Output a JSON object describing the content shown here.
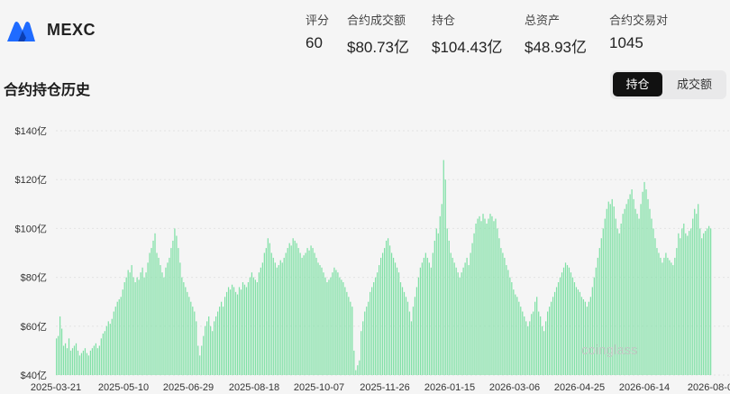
{
  "header": {
    "exchange_name": "MEXC",
    "logo_icon": "mexc-logo-icon",
    "stats": [
      {
        "label": "评分",
        "value": "60"
      },
      {
        "label": "合约成交额",
        "value": "$80.73亿"
      },
      {
        "label": "持仓",
        "value": "$104.43亿"
      },
      {
        "label": "总资产",
        "value": "$48.93亿"
      },
      {
        "label": "合约交易对",
        "value": "1045"
      }
    ]
  },
  "section": {
    "title": "合约持仓历史",
    "tabs": [
      "持仓",
      "成交额"
    ],
    "active_tab": "持仓"
  },
  "watermark": "coinglass",
  "colors": {
    "bar": "#7fe0a5",
    "brand": "#1f6bff",
    "active_tab_bg": "#111111"
  },
  "chart_data": {
    "type": "bar",
    "title": "",
    "xlabel": "",
    "ylabel": "",
    "ylim": [
      40,
      150
    ],
    "y_ticks": [
      40,
      60,
      80,
      100,
      120,
      140
    ],
    "y_tick_labels": [
      "$40亿",
      "$60亿",
      "$80亿",
      "$100亿",
      "$120亿",
      "$140亿"
    ],
    "x_tick_labels": [
      "2025-03-21",
      "2025-05-10",
      "2025-06-29",
      "2025-08-18",
      "2025-10-07",
      "2025-11-26",
      "2026-01-15",
      "2026-03-06",
      "2026-04-25",
      "2026-06-14",
      "2026-08-0"
    ],
    "grid": true,
    "unit": "亿 USD",
    "start_date": "2025-03-21",
    "interval_days": 1,
    "values": [
      55,
      56,
      64,
      59,
      52,
      53,
      51,
      55,
      50,
      51,
      52,
      53,
      50,
      48,
      49,
      50,
      51,
      49,
      48,
      50,
      51,
      52,
      53,
      51,
      52,
      55,
      57,
      58,
      60,
      62,
      61,
      63,
      66,
      68,
      70,
      71,
      72,
      75,
      78,
      80,
      83,
      82,
      85,
      80,
      78,
      80,
      79,
      82,
      84,
      80,
      82,
      86,
      90,
      92,
      95,
      98,
      90,
      88,
      85,
      82,
      80,
      84,
      86,
      88,
      92,
      95,
      100,
      97,
      92,
      86,
      80,
      78,
      76,
      74,
      72,
      70,
      68,
      66,
      62,
      52,
      48,
      52,
      56,
      60,
      62,
      64,
      60,
      58,
      62,
      64,
      66,
      68,
      70,
      68,
      72,
      74,
      76,
      75,
      77,
      76,
      74,
      73,
      76,
      75,
      78,
      77,
      76,
      78,
      80,
      82,
      80,
      79,
      78,
      82,
      84,
      86,
      90,
      92,
      96,
      94,
      90,
      88,
      86,
      84,
      85,
      87,
      86,
      88,
      90,
      92,
      94,
      93,
      96,
      95,
      94,
      92,
      90,
      88,
      89,
      90,
      92,
      91,
      93,
      92,
      90,
      88,
      86,
      85,
      84,
      82,
      80,
      78,
      79,
      80,
      82,
      84,
      83,
      82,
      80,
      79,
      78,
      76,
      74,
      72,
      70,
      68,
      50,
      42,
      44,
      46,
      58,
      62,
      66,
      68,
      70,
      74,
      76,
      78,
      80,
      82,
      85,
      88,
      90,
      92,
      95,
      96,
      93,
      90,
      88,
      86,
      84,
      82,
      78,
      76,
      74,
      72,
      70,
      66,
      62,
      68,
      72,
      76,
      80,
      84,
      86,
      88,
      90,
      88,
      86,
      84,
      90,
      95,
      100,
      98,
      105,
      110,
      128,
      120,
      100,
      95,
      90,
      88,
      86,
      84,
      82,
      80,
      82,
      84,
      86,
      88,
      85,
      90,
      94,
      98,
      102,
      104,
      105,
      103,
      106,
      104,
      102,
      104,
      106,
      105,
      103,
      104,
      100,
      96,
      92,
      90,
      88,
      85,
      83,
      80,
      78,
      75,
      73,
      72,
      70,
      68,
      66,
      64,
      62,
      60,
      62,
      65,
      66,
      70,
      72,
      66,
      64,
      60,
      58,
      62,
      66,
      68,
      70,
      72,
      74,
      76,
      78,
      80,
      82,
      84,
      86,
      85,
      84,
      82,
      80,
      78,
      76,
      75,
      74,
      72,
      71,
      70,
      68,
      70,
      72,
      76,
      80,
      84,
      88,
      92,
      96,
      100,
      104,
      108,
      111,
      110,
      112,
      109,
      104,
      100,
      98,
      102,
      106,
      108,
      110,
      112,
      114,
      116,
      112,
      108,
      106,
      104,
      110,
      115,
      119,
      116,
      112,
      108,
      104,
      100,
      96,
      92,
      90,
      88,
      86,
      88,
      90,
      88,
      87,
      86,
      85,
      88,
      92,
      98,
      96,
      100,
      102,
      98,
      97,
      99,
      100,
      104,
      108,
      106,
      110,
      100,
      96,
      98,
      99,
      100,
      101,
      100
    ]
  }
}
